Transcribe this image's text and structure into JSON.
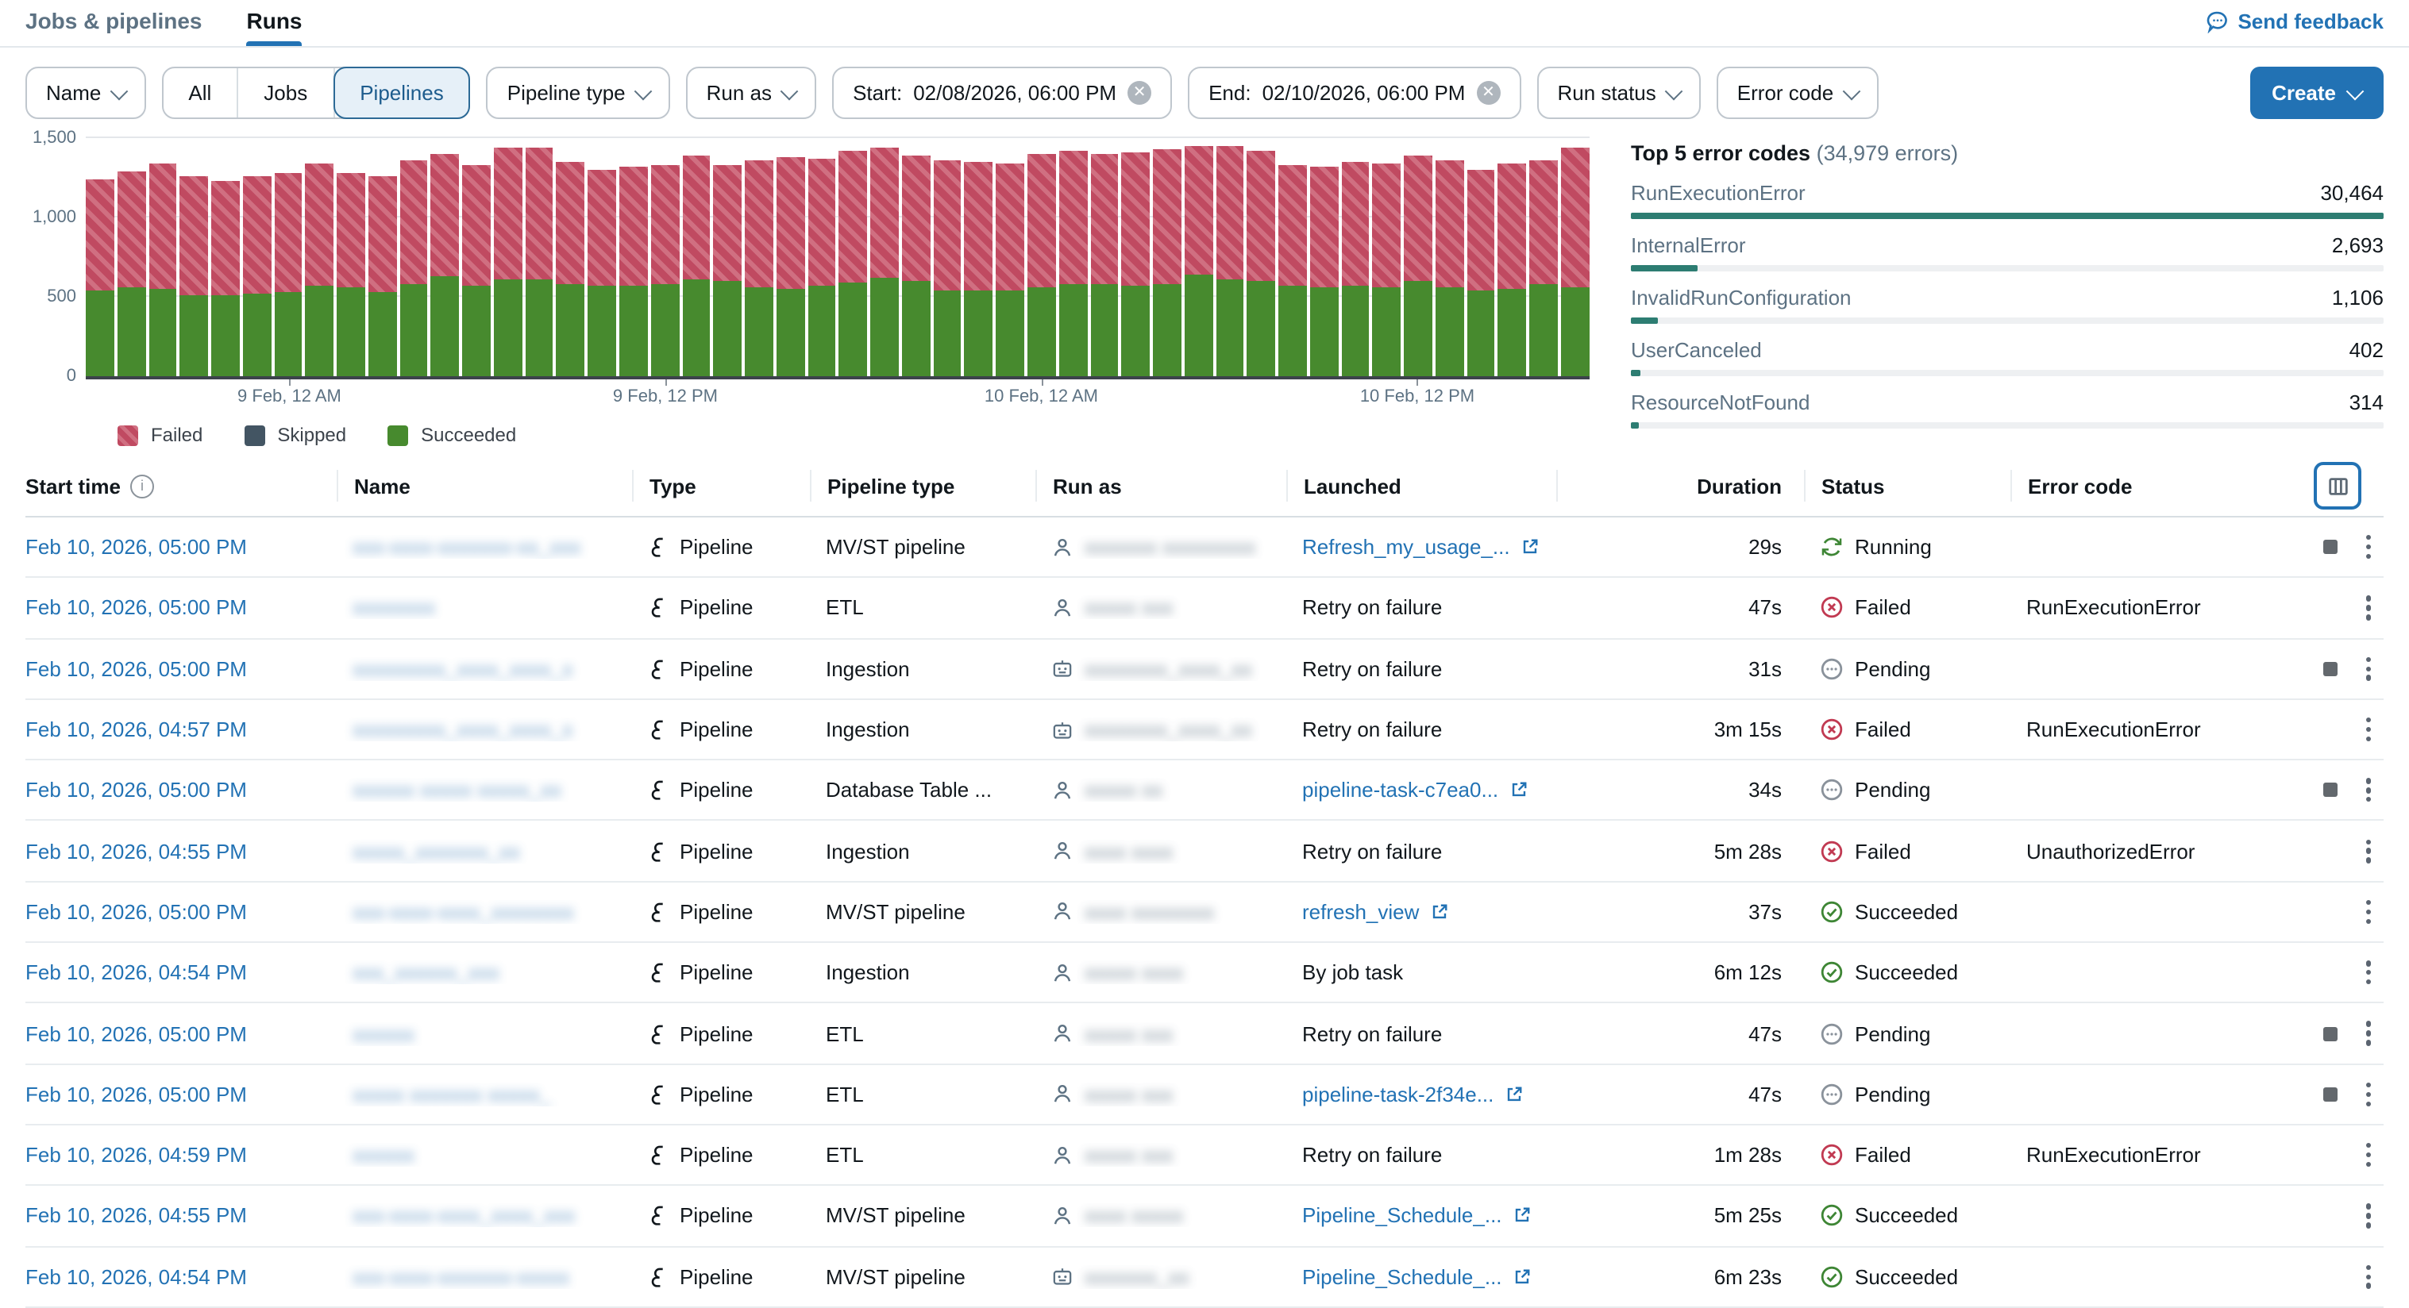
{
  "tabs": {
    "jobs_pipelines": "Jobs & pipelines",
    "runs": "Runs"
  },
  "send_feedback": "Send feedback",
  "filters": {
    "name_label": "Name",
    "scope": {
      "all": "All",
      "jobs": "Jobs",
      "pipelines": "Pipelines",
      "selected": "Pipelines"
    },
    "pipeline_type_label": "Pipeline type",
    "run_as_label": "Run as",
    "start_label": "Start:",
    "start_value": "02/08/2026, 06:00 PM",
    "end_label": "End:",
    "end_value": "02/10/2026, 06:00 PM",
    "run_status_label": "Run status",
    "error_code_label": "Error code",
    "create_label": "Create"
  },
  "chart_data": {
    "type": "bar",
    "stacked": true,
    "title": "",
    "xlabel": "",
    "ylabel": "",
    "ylim": [
      0,
      1500
    ],
    "yticks": [
      {
        "value": 0,
        "label": "0"
      },
      {
        "value": 500,
        "label": "500"
      },
      {
        "value": 1000,
        "label": "1,000"
      },
      {
        "value": 1500,
        "label": "1,500"
      }
    ],
    "x_unit": "hour",
    "x_tick_labels": [
      {
        "index": 6,
        "label": "9 Feb, 12 AM"
      },
      {
        "index": 18,
        "label": "9 Feb, 12 PM"
      },
      {
        "index": 30,
        "label": "10 Feb, 12 AM"
      },
      {
        "index": 42,
        "label": "10 Feb, 12 PM"
      }
    ],
    "legend": [
      {
        "name": "Failed",
        "swatch": "failed"
      },
      {
        "name": "Skipped",
        "swatch": "skipped"
      },
      {
        "name": "Succeeded",
        "swatch": "succeeded"
      }
    ],
    "colors": {
      "failed": "#C04A61",
      "failed_stripe": "#D06F81",
      "skipped": "#435563",
      "succeeded": "#478A2E"
    },
    "series": [
      {
        "name": "Succeeded",
        "values": [
          545,
          565,
          555,
          515,
          515,
          520,
          530,
          570,
          565,
          530,
          585,
          635,
          570,
          610,
          615,
          585,
          570,
          575,
          585,
          610,
          600,
          565,
          555,
          570,
          595,
          625,
          600,
          545,
          545,
          545,
          560,
          585,
          580,
          570,
          580,
          640,
          615,
          605,
          575,
          565,
          575,
          565,
          605,
          560,
          545,
          555,
          580,
          565
        ]
      },
      {
        "name": "Failed",
        "values": [
          695,
          725,
          790,
          750,
          720,
          740,
          755,
          775,
          715,
          730,
          775,
          765,
          760,
          830,
          825,
          770,
          735,
          750,
          750,
          780,
          730,
          795,
          830,
          800,
          825,
          820,
          790,
          820,
          805,
          795,
          845,
          835,
          820,
          840,
          850,
          815,
          835,
          820,
          755,
          755,
          780,
          780,
          785,
          805,
          760,
          785,
          785,
          875
        ]
      },
      {
        "name": "Skipped",
        "values": [
          0,
          0,
          0,
          0,
          0,
          0,
          0,
          0,
          0,
          0,
          0,
          0,
          0,
          0,
          0,
          0,
          0,
          0,
          0,
          0,
          0,
          0,
          0,
          0,
          0,
          0,
          0,
          0,
          0,
          0,
          0,
          0,
          0,
          0,
          0,
          0,
          0,
          0,
          0,
          0,
          0,
          0,
          0,
          0,
          0,
          0,
          0,
          0
        ]
      }
    ]
  },
  "error_panel": {
    "title": "Top 5 error codes",
    "subtitle": "(34,979 errors)",
    "max": 30464,
    "accent": "#2D7D72",
    "items": [
      {
        "label": "RunExecutionError",
        "display": "30,464",
        "count": 30464
      },
      {
        "label": "InternalError",
        "display": "2,693",
        "count": 2693
      },
      {
        "label": "InvalidRunConfiguration",
        "display": "1,106",
        "count": 1106
      },
      {
        "label": "UserCanceled",
        "display": "402",
        "count": 402
      },
      {
        "label": "ResourceNotFound",
        "display": "314",
        "count": 314
      }
    ]
  },
  "table": {
    "headers": {
      "start_time": "Start time",
      "name": "Name",
      "type": "Type",
      "pipeline_type": "Pipeline type",
      "run_as": "Run as",
      "launched": "Launched",
      "duration": "Duration",
      "status": "Status",
      "error_code": "Error code"
    },
    "rows": [
      {
        "start": "Feb 10, 2026, 05:00 PM",
        "name_masked": "xxx-xxxx-xxxxxxx-xx_xxx",
        "type": "Pipeline",
        "pipeline_type": "MV/ST pipeline",
        "run_as_kind": "user",
        "run_as_masked": "xxxxxxx xxxxxxxxx",
        "launched": "Refresh_my_usage_...",
        "launched_kind": "link",
        "duration": "29s",
        "status": "Running",
        "error_code": "",
        "stoppable": true
      },
      {
        "start": "Feb 10, 2026, 05:00 PM",
        "name_masked": "xxxxxxxx",
        "type": "Pipeline",
        "pipeline_type": "ETL",
        "run_as_kind": "user",
        "run_as_masked": "xxxxx xxx",
        "launched": "Retry on failure",
        "launched_kind": "text",
        "duration": "47s",
        "status": "Failed",
        "error_code": "RunExecutionError",
        "stoppable": false
      },
      {
        "start": "Feb 10, 2026, 05:00 PM",
        "name_masked": "xxxxxxxxx_xxxx_xxxx_x",
        "type": "Pipeline",
        "pipeline_type": "Ingestion",
        "run_as_kind": "service",
        "run_as_masked": "xxxxxxxx_xxxx_xx",
        "launched": "Retry on failure",
        "launched_kind": "text",
        "duration": "31s",
        "status": "Pending",
        "error_code": "",
        "stoppable": true
      },
      {
        "start": "Feb 10, 2026, 04:57 PM",
        "name_masked": "xxxxxxxxx_xxxx_xxxx_x",
        "type": "Pipeline",
        "pipeline_type": "Ingestion",
        "run_as_kind": "service",
        "run_as_masked": "xxxxxxxx_xxxx_xx",
        "launched": "Retry on failure",
        "launched_kind": "text",
        "duration": "3m 15s",
        "status": "Failed",
        "error_code": "RunExecutionError",
        "stoppable": false
      },
      {
        "start": "Feb 10, 2026, 05:00 PM",
        "name_masked": "xxxxxx xxxxx xxxxx_xx",
        "type": "Pipeline",
        "pipeline_type": "Database Table ...",
        "run_as_kind": "user",
        "run_as_masked": "xxxxx xx",
        "launched": "pipeline-task-c7ea0...",
        "launched_kind": "link",
        "duration": "34s",
        "status": "Pending",
        "error_code": "",
        "stoppable": true
      },
      {
        "start": "Feb 10, 2026, 04:55 PM",
        "name_masked": "xxxxx_xxxxxxx_xx",
        "type": "Pipeline",
        "pipeline_type": "Ingestion",
        "run_as_kind": "user",
        "run_as_masked": "xxxx xxxx",
        "launched": "Retry on failure",
        "launched_kind": "text",
        "duration": "5m 28s",
        "status": "Failed",
        "error_code": "UnauthorizedError",
        "stoppable": false
      },
      {
        "start": "Feb 10, 2026, 05:00 PM",
        "name_masked": "xxx-xxxx-xxxx_xxxxxxxx",
        "type": "Pipeline",
        "pipeline_type": "MV/ST pipeline",
        "run_as_kind": "user",
        "run_as_masked": "xxxx xxxxxxxx",
        "launched": "refresh_view",
        "launched_kind": "link",
        "duration": "37s",
        "status": "Succeeded",
        "error_code": "",
        "stoppable": false
      },
      {
        "start": "Feb 10, 2026, 04:54 PM",
        "name_masked": "xxx_xxxxxx_xxx",
        "type": "Pipeline",
        "pipeline_type": "Ingestion",
        "run_as_kind": "user",
        "run_as_masked": "xxxxx xxxx",
        "launched": "By job task",
        "launched_kind": "text",
        "duration": "6m 12s",
        "status": "Succeeded",
        "error_code": "",
        "stoppable": false
      },
      {
        "start": "Feb 10, 2026, 05:00 PM",
        "name_masked": "xxxxxx",
        "type": "Pipeline",
        "pipeline_type": "ETL",
        "run_as_kind": "user",
        "run_as_masked": "xxxxx xxx",
        "launched": "Retry on failure",
        "launched_kind": "text",
        "duration": "47s",
        "status": "Pending",
        "error_code": "",
        "stoppable": true
      },
      {
        "start": "Feb 10, 2026, 05:00 PM",
        "name_masked": "xxxxx xxxxxxx xxxxx_",
        "type": "Pipeline",
        "pipeline_type": "ETL",
        "run_as_kind": "user",
        "run_as_masked": "xxxxx xxx",
        "launched": "pipeline-task-2f34e...",
        "launched_kind": "link",
        "duration": "47s",
        "status": "Pending",
        "error_code": "",
        "stoppable": true
      },
      {
        "start": "Feb 10, 2026, 04:59 PM",
        "name_masked": "xxxxxx",
        "type": "Pipeline",
        "pipeline_type": "ETL",
        "run_as_kind": "user",
        "run_as_masked": "xxxxx xxx",
        "launched": "Retry on failure",
        "launched_kind": "text",
        "duration": "1m 28s",
        "status": "Failed",
        "error_code": "RunExecutionError",
        "stoppable": false
      },
      {
        "start": "Feb 10, 2026, 04:55 PM",
        "name_masked": "xxx-xxxx-xxxx_xxxx_xxx",
        "type": "Pipeline",
        "pipeline_type": "MV/ST pipeline",
        "run_as_kind": "user",
        "run_as_masked": "xxxx xxxxx",
        "launched": "Pipeline_Schedule_...",
        "launched_kind": "link",
        "duration": "5m 25s",
        "status": "Succeeded",
        "error_code": "",
        "stoppable": false
      },
      {
        "start": "Feb 10, 2026, 04:54 PM",
        "name_masked": "xxx-xxxx-xxxxxxx-xxxxx",
        "type": "Pipeline",
        "pipeline_type": "MV/ST pipeline",
        "run_as_kind": "service",
        "run_as_masked": "xxxxxxx_xx",
        "launched": "Pipeline_Schedule_...",
        "launched_kind": "link",
        "duration": "6m 23s",
        "status": "Succeeded",
        "error_code": "",
        "stoppable": false
      }
    ]
  }
}
